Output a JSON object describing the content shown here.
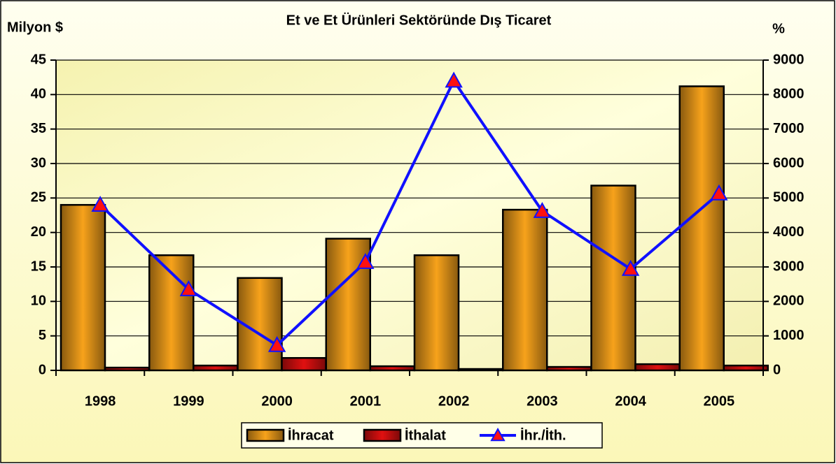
{
  "chart_data": {
    "type": "bar-line",
    "title": "Et ve Et Ürünleri Sektöründe Dış Ticaret",
    "y_label": "Milyon $",
    "y2_label": "%",
    "categories": [
      "1998",
      "1999",
      "2000",
      "2001",
      "2002",
      "2003",
      "2004",
      "2005"
    ],
    "series": [
      {
        "name": "İhracat",
        "type": "bar",
        "color": "#f7a21b",
        "values": [
          24,
          16.7,
          13.4,
          19.1,
          16.7,
          23.3,
          26.8,
          41.2
        ]
      },
      {
        "name": "İthalat",
        "type": "bar",
        "color": "#e01010",
        "values": [
          0.4,
          0.7,
          1.8,
          0.6,
          0.2,
          0.5,
          0.9,
          0.7
        ]
      },
      {
        "name": "İhr./İth.",
        "type": "line",
        "axis": "y2",
        "color": "#1010ff",
        "marker_color": "#ff1010",
        "values": [
          4800,
          2350,
          730,
          3140,
          8400,
          4620,
          2940,
          5130
        ]
      }
    ],
    "ylim": [
      0,
      45
    ],
    "yticks": [
      0,
      5,
      10,
      15,
      20,
      25,
      30,
      35,
      40,
      45
    ],
    "y2lim": [
      0,
      9000
    ],
    "y2ticks": [
      0,
      1000,
      2000,
      3000,
      4000,
      5000,
      6000,
      7000,
      8000,
      9000
    ],
    "grid": true,
    "legend": "bottom"
  }
}
